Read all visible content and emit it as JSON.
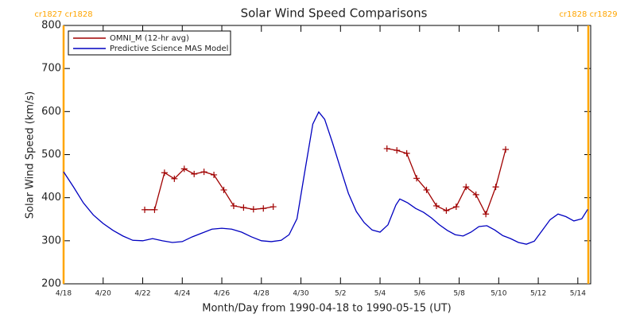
{
  "chart_data": {
    "type": "line",
    "title": "Solar Wind Speed Comparisons",
    "x_label": "Month/Day from 1990-04-18 to 1990-05-15 (UT)",
    "y_label": "Solar Wind Speed (km/s)",
    "xlim": [
      0,
      26.65
    ],
    "ylim": [
      200,
      800
    ],
    "xticks": [
      {
        "value": 0,
        "label": "4/18"
      },
      {
        "value": 2,
        "label": "4/20"
      },
      {
        "value": 4,
        "label": "4/22"
      },
      {
        "value": 6,
        "label": "4/24"
      },
      {
        "value": 8,
        "label": "4/26"
      },
      {
        "value": 10,
        "label": "4/28"
      },
      {
        "value": 12,
        "label": "4/30"
      },
      {
        "value": 14,
        "label": "5/2"
      },
      {
        "value": 16,
        "label": "5/4"
      },
      {
        "value": 18,
        "label": "5/6"
      },
      {
        "value": 20,
        "label": "5/8"
      },
      {
        "value": 22,
        "label": "5/10"
      },
      {
        "value": 24,
        "label": "5/12"
      },
      {
        "value": 26,
        "label": "5/14"
      }
    ],
    "yticks": [
      200,
      300,
      400,
      500,
      600,
      700,
      800
    ],
    "legend": "upper left",
    "boundaries": [
      {
        "x": 0,
        "label": "cr1827 cr1828",
        "color": "#ffa500"
      },
      {
        "x": 26.53,
        "label": "cr1828 cr1829",
        "color": "#ffa500"
      }
    ],
    "series": [
      {
        "name": "OMNI_M (12-hr avg)",
        "color": "#a00000",
        "markers": true,
        "x": [
          4.1,
          4.6,
          5.1,
          5.6,
          6.1,
          6.6,
          7.1,
          7.6,
          8.1,
          8.6,
          9.1,
          9.6,
          10.1,
          10.6,
          13.5,
          16.35,
          16.85,
          17.35,
          17.85,
          18.35,
          18.85,
          19.35,
          19.85,
          20.35,
          20.85,
          21.35,
          21.85,
          22.35
        ],
        "values": [
          372,
          372,
          458,
          444,
          467,
          455,
          460,
          453,
          418,
          381,
          377,
          373,
          375,
          379,
          null,
          514,
          510,
          503,
          445,
          418,
          381,
          370,
          379,
          425,
          407,
          362,
          425,
          512
        ]
      },
      {
        "name": "Predictive Science MAS Model",
        "color": "#0000c0",
        "markers": false,
        "x": [
          0,
          0.5,
          1,
          1.5,
          2,
          2.5,
          3,
          3.5,
          4,
          4.5,
          5,
          5.5,
          6,
          6.5,
          7,
          7.5,
          8,
          8.5,
          9,
          9.5,
          10,
          10.5,
          11,
          11.4,
          11.8,
          12.2,
          12.6,
          12.9,
          13.2,
          13.6,
          14.0,
          14.4,
          14.8,
          15.2,
          15.6,
          16.0,
          16.4,
          16.8,
          17.0,
          17.4,
          17.8,
          18.2,
          18.6,
          19.0,
          19.4,
          19.8,
          20.2,
          20.6,
          21.0,
          21.4,
          21.8,
          22.2,
          22.6,
          23.0,
          23.4,
          23.8,
          24.2,
          24.6,
          25.0,
          25.4,
          25.8,
          26.2,
          26.5
        ],
        "values": [
          460,
          425,
          388,
          360,
          340,
          324,
          311,
          301,
          300,
          305,
          300,
          296,
          298,
          309,
          318,
          327,
          329,
          327,
          320,
          309,
          300,
          298,
          301,
          314,
          351,
          462,
          571,
          599,
          582,
          527,
          468,
          410,
          368,
          342,
          325,
          320,
          337,
          383,
          397,
          388,
          375,
          366,
          353,
          337,
          324,
          314,
          311,
          320,
          333,
          335,
          325,
          312,
          305,
          296,
          292,
          299,
          324,
          349,
          362,
          356,
          346,
          351,
          373
        ]
      }
    ]
  }
}
